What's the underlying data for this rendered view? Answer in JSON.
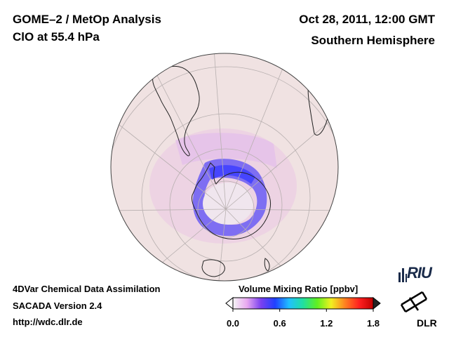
{
  "header": {
    "title": "GOME–2 / MetOp Analysis",
    "species": "ClO at 55.4 hPa",
    "datetime": "Oct 28, 2011, 12:00 GMT",
    "region": "Southern Hemisphere"
  },
  "footer": {
    "line1": "4DVar Chemical Data Assimilation",
    "line2": "SACADA Version 2.4",
    "line3": "http://wdc.dlr.de"
  },
  "colorbar": {
    "title": "Volume Mixing Ratio [ppbv]",
    "tick_labels": [
      "0.0",
      "0.6",
      "1.2",
      "1.8"
    ],
    "min": 0.0,
    "max": 1.8,
    "colors": [
      "#f5f5f5",
      "#e8a8f0",
      "#7a40f0",
      "#2040ff",
      "#20c0ff",
      "#20e0a0",
      "#60f020",
      "#f0f020",
      "#ff8020",
      "#ff2020",
      "#c00000"
    ]
  },
  "logos": {
    "riu": "RIU",
    "dlr": "DLR"
  },
  "map": {
    "projection": "orthographic",
    "hemisphere": "south",
    "background_color": "#f0e4e4",
    "high_value_color": "#6a5cf5"
  }
}
